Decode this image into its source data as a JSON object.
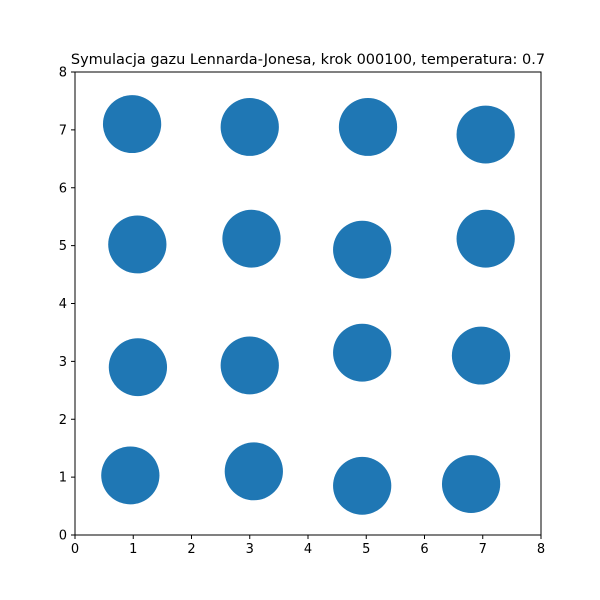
{
  "chart_data": {
    "type": "scatter",
    "title": "Symulacja gazu Lennarda-Jonesa, krok 000100, temperatura: 0.7",
    "xlabel": "",
    "ylabel": "",
    "xlim": [
      0,
      8
    ],
    "ylim": [
      0,
      8
    ],
    "xticks": [
      "0",
      "1",
      "2",
      "3",
      "4",
      "5",
      "6",
      "7",
      "8"
    ],
    "yticks": [
      "0",
      "1",
      "2",
      "3",
      "4",
      "5",
      "6",
      "7",
      "8"
    ],
    "grid": false,
    "marker_color": "#1f77b4",
    "marker_diameter": 1.0,
    "points": [
      {
        "x": 0.98,
        "y": 7.1
      },
      {
        "x": 3.0,
        "y": 7.05
      },
      {
        "x": 5.03,
        "y": 7.05
      },
      {
        "x": 7.05,
        "y": 6.92
      },
      {
        "x": 1.07,
        "y": 5.02
      },
      {
        "x": 3.03,
        "y": 5.12
      },
      {
        "x": 4.93,
        "y": 4.93
      },
      {
        "x": 7.05,
        "y": 5.12
      },
      {
        "x": 1.08,
        "y": 2.9
      },
      {
        "x": 3.0,
        "y": 2.93
      },
      {
        "x": 4.93,
        "y": 3.15
      },
      {
        "x": 6.97,
        "y": 3.1
      },
      {
        "x": 0.95,
        "y": 1.03
      },
      {
        "x": 3.07,
        "y": 1.1
      },
      {
        "x": 4.93,
        "y": 0.85
      },
      {
        "x": 6.8,
        "y": 0.88
      }
    ]
  }
}
